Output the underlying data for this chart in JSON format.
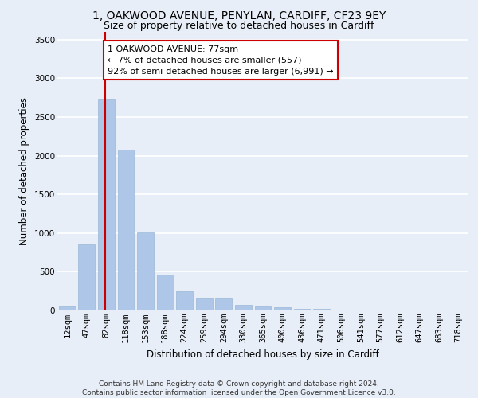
{
  "title_line1": "1, OAKWOOD AVENUE, PENYLAN, CARDIFF, CF23 9EY",
  "title_line2": "Size of property relative to detached houses in Cardiff",
  "xlabel": "Distribution of detached houses by size in Cardiff",
  "ylabel": "Number of detached properties",
  "categories": [
    "12sqm",
    "47sqm",
    "82sqm",
    "118sqm",
    "153sqm",
    "188sqm",
    "224sqm",
    "259sqm",
    "294sqm",
    "330sqm",
    "365sqm",
    "400sqm",
    "436sqm",
    "471sqm",
    "506sqm",
    "541sqm",
    "577sqm",
    "612sqm",
    "647sqm",
    "683sqm",
    "718sqm"
  ],
  "values": [
    55,
    850,
    2740,
    2080,
    1010,
    460,
    250,
    155,
    155,
    75,
    50,
    40,
    25,
    20,
    15,
    12,
    8,
    5,
    4,
    3,
    2
  ],
  "bar_color": "#aec6e8",
  "bar_edge_color": "#9ab8d8",
  "vline_color": "#cc0000",
  "annotation_text": "1 OAKWOOD AVENUE: 77sqm\n← 7% of detached houses are smaller (557)\n92% of semi-detached houses are larger (6,991) →",
  "annotation_box_color": "#ffffff",
  "annotation_box_edge_color": "#cc0000",
  "ylim": [
    0,
    3600
  ],
  "yticks": [
    0,
    500,
    1000,
    1500,
    2000,
    2500,
    3000,
    3500
  ],
  "background_color": "#e8eef7",
  "grid_color": "#ffffff",
  "footnote": "Contains HM Land Registry data © Crown copyright and database right 2024.\nContains public sector information licensed under the Open Government Licence v3.0.",
  "title_fontsize": 10,
  "subtitle_fontsize": 9,
  "axis_label_fontsize": 8.5,
  "tick_fontsize": 7.5,
  "annotation_fontsize": 8,
  "footnote_fontsize": 6.5
}
